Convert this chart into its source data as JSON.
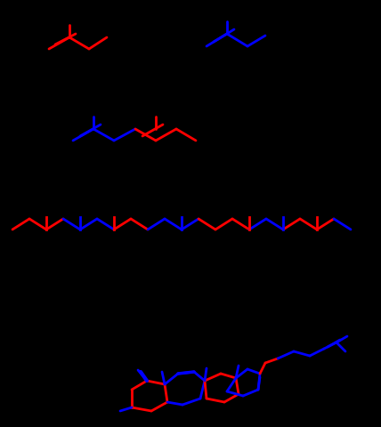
{
  "background": "#000000",
  "red": "#ff0000",
  "blue": "#0000ff",
  "lw": 2.0,
  "figsize": [
    4.28,
    4.8
  ],
  "dpi": 100
}
